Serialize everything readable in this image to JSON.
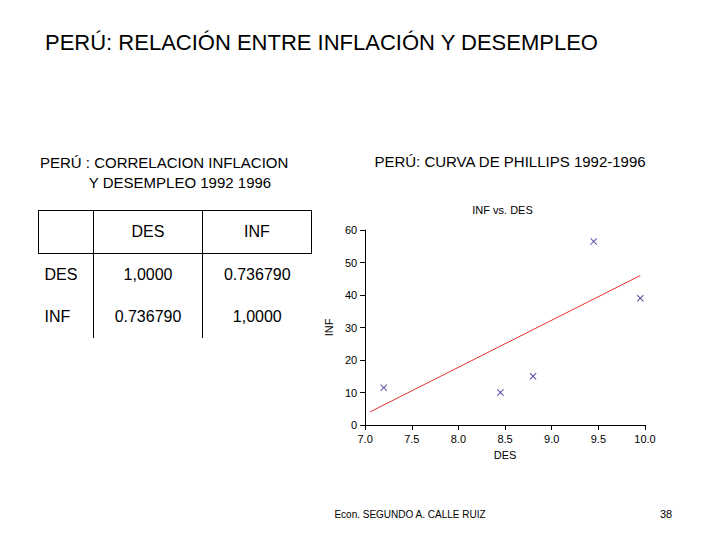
{
  "slide": {
    "title": "PERÚ: RELACIÓN ENTRE INFLACIÓN Y DESEMPLEO",
    "table_title": [
      "PERÚ : CORRELACION INFLACION",
      "Y DESEMPLEO 1992 1996"
    ],
    "table": {
      "rows": [
        [
          "",
          "DES",
          "INF"
        ],
        [
          "DES",
          "1,0000",
          "0.736790"
        ],
        [
          "INF",
          "0.736790",
          "1,0000"
        ]
      ]
    },
    "chart_heading": "PERÚ: CURVA DE PHILLIPS 1992-1996",
    "footer": "Econ. SEGUNDO A. CALLE RUIZ",
    "page": "38"
  },
  "chart_data": {
    "type": "scatter",
    "title": "INF vs. DES",
    "x_label": "DES",
    "y_label": "INF",
    "x": [
      7.2,
      8.45,
      8.8,
      9.45,
      9.95
    ],
    "values": [
      11.5,
      10,
      15,
      56.5,
      39
    ],
    "color": "#23238c",
    "marker": "x",
    "fit_line": {
      "x": [
        7.05,
        9.95
      ],
      "values": [
        4,
        46
      ],
      "color": "#e8312f",
      "line_style": "solid"
    },
    "xlim": [
      7,
      10
    ],
    "xticks": [
      {
        "value": 7,
        "label": "7.0"
      },
      {
        "value": 7.5,
        "label": "7.5"
      },
      {
        "value": 8,
        "label": "8.0"
      },
      {
        "value": 8.5,
        "label": "8.5"
      },
      {
        "value": 9,
        "label": "9.0"
      },
      {
        "value": 9.5,
        "label": "9.5"
      },
      {
        "value": 10,
        "label": "10.0"
      }
    ],
    "ylim": [
      0,
      60
    ],
    "yticks": [
      0,
      10,
      20,
      30,
      40,
      50,
      60
    ],
    "grid": false
  }
}
